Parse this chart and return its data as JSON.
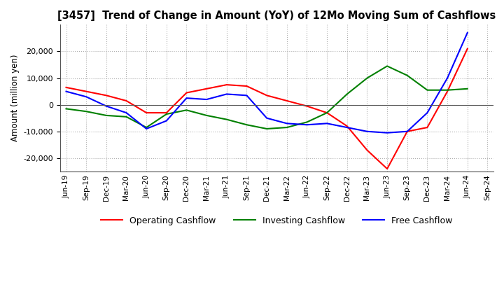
{
  "title": "[3457]  Trend of Change in Amount (YoY) of 12Mo Moving Sum of Cashflows",
  "ylabel": "Amount (million yen)",
  "ylim": [
    -25000,
    30000
  ],
  "yticks": [
    -20000,
    -10000,
    0,
    10000,
    20000
  ],
  "x_labels": [
    "Jun-19",
    "Sep-19",
    "Dec-19",
    "Mar-20",
    "Jun-20",
    "Sep-20",
    "Dec-20",
    "Mar-21",
    "Jun-21",
    "Sep-21",
    "Dec-21",
    "Mar-22",
    "Jun-22",
    "Sep-22",
    "Dec-22",
    "Mar-23",
    "Jun-23",
    "Sep-23",
    "Dec-23",
    "Mar-24",
    "Jun-24",
    "Sep-24"
  ],
  "operating": [
    6500,
    5000,
    3500,
    1500,
    -3000,
    -3000,
    4500,
    6000,
    7500,
    7000,
    3500,
    1500,
    -500,
    -3000,
    -8000,
    -17000,
    -24000,
    -10000,
    -8500,
    5000,
    21000,
    null
  ],
  "investing": [
    -1500,
    -2500,
    -4000,
    -4500,
    -8500,
    -3500,
    -2000,
    -4000,
    -5500,
    -7500,
    -9000,
    -8500,
    -6500,
    -3000,
    4000,
    10000,
    14500,
    11000,
    5500,
    5500,
    6000,
    null
  ],
  "free": [
    5000,
    3000,
    -500,
    -3000,
    -9000,
    -6000,
    2500,
    2000,
    4000,
    3500,
    -5000,
    -7000,
    -7500,
    -7000,
    -8500,
    -10000,
    -10500,
    -10000,
    -3000,
    10000,
    27000,
    null
  ],
  "op_color": "#ff0000",
  "inv_color": "#008000",
  "free_color": "#0000ff",
  "background": "#ffffff",
  "grid_color": "#b0b0b0"
}
